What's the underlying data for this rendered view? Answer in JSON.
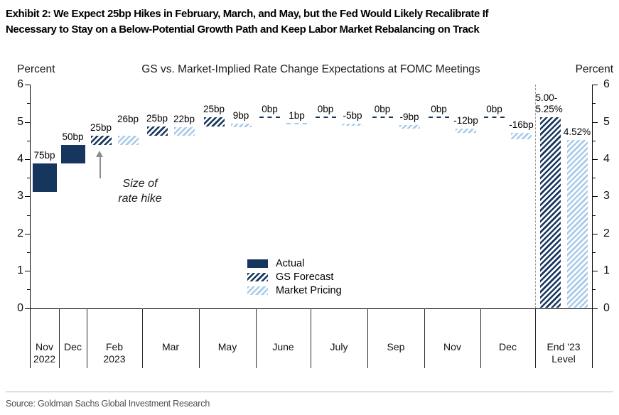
{
  "exhibit": {
    "title": "Exhibit 2: We Expect 25bp Hikes in February, March, and May, but the Fed Would Likely Recalibrate If\nNecessary to Stay on a Below-Potential Growth Path and Keep Labor Market Rebalancing on Track"
  },
  "source_line": "Source: Goldman Sachs Global Investment Research",
  "chart_data": {
    "type": "bar",
    "title": "GS vs. Market-Implied Rate Change Expectations at FOMC Meetings",
    "y_axis": {
      "label_left": "Percent",
      "label_right": "Percent",
      "min": 0,
      "max": 6,
      "major_step": 1,
      "minor_step": 0.5
    },
    "colors": {
      "navy": "#17365d",
      "light_blue": "#a8cbea"
    },
    "legend": [
      {
        "key": "actual",
        "label": "Actual"
      },
      {
        "key": "gs",
        "label": "GS Forecast"
      },
      {
        "key": "market",
        "label": "Market Pricing"
      }
    ],
    "annotation": {
      "text": "Size of\nrate hike"
    },
    "meetings": [
      {
        "category": "Nov\n2022",
        "bars": [
          {
            "series": "actual",
            "label": "75bp",
            "from": 3.125,
            "to": 3.875
          }
        ]
      },
      {
        "category": "Dec",
        "bars": [
          {
            "series": "actual",
            "label": "50bp",
            "from": 3.875,
            "to": 4.375
          }
        ]
      },
      {
        "category": "Feb\n2023",
        "bars": [
          {
            "series": "gs",
            "label": "25bp",
            "from": 4.375,
            "to": 4.625
          },
          {
            "series": "market",
            "label": "26bp",
            "from": 4.375,
            "to": 4.635,
            "label_dy": -12
          }
        ]
      },
      {
        "category": "Mar",
        "bars": [
          {
            "series": "gs",
            "label": "25bp",
            "from": 4.625,
            "to": 4.875
          },
          {
            "series": "market",
            "label": "22bp",
            "from": 4.635,
            "to": 4.855
          }
        ]
      },
      {
        "category": "May",
        "bars": [
          {
            "series": "gs",
            "label": "25bp",
            "from": 4.875,
            "to": 5.125
          },
          {
            "series": "market",
            "label": "9bp",
            "from": 4.855,
            "to": 4.945
          }
        ]
      },
      {
        "category": "June",
        "bars": [
          {
            "series": "gs",
            "label": "0bp",
            "from": 5.125,
            "to": 5.125
          },
          {
            "series": "market",
            "label": "1bp",
            "from": 4.945,
            "to": 4.955
          }
        ]
      },
      {
        "category": "July",
        "bars": [
          {
            "series": "gs",
            "label": "0bp",
            "from": 5.125,
            "to": 5.125
          },
          {
            "series": "market",
            "label": "-5bp",
            "from": 4.955,
            "to": 4.905
          }
        ]
      },
      {
        "category": "Sep",
        "bars": [
          {
            "series": "gs",
            "label": "0bp",
            "from": 5.125,
            "to": 5.125
          },
          {
            "series": "market",
            "label": "-9bp",
            "from": 4.905,
            "to": 4.815
          }
        ]
      },
      {
        "category": "Nov",
        "bars": [
          {
            "series": "gs",
            "label": "0bp",
            "from": 5.125,
            "to": 5.125
          },
          {
            "series": "market",
            "label": "-12bp",
            "from": 4.815,
            "to": 4.695
          }
        ]
      },
      {
        "category": "Dec",
        "bars": [
          {
            "series": "gs",
            "label": "0bp",
            "from": 5.125,
            "to": 5.125
          },
          {
            "series": "market",
            "label": "-16bp",
            "from": 4.695,
            "to": 4.535
          }
        ]
      },
      {
        "category": "End '23\nLevel",
        "separator_before": true,
        "bars": [
          {
            "series": "gs",
            "label": "5.00-\n5.25%",
            "from": 0,
            "to": 5.125,
            "label_align": "left"
          },
          {
            "series": "market",
            "label": "4.52%",
            "from": 0,
            "to": 4.52
          }
        ]
      }
    ]
  }
}
